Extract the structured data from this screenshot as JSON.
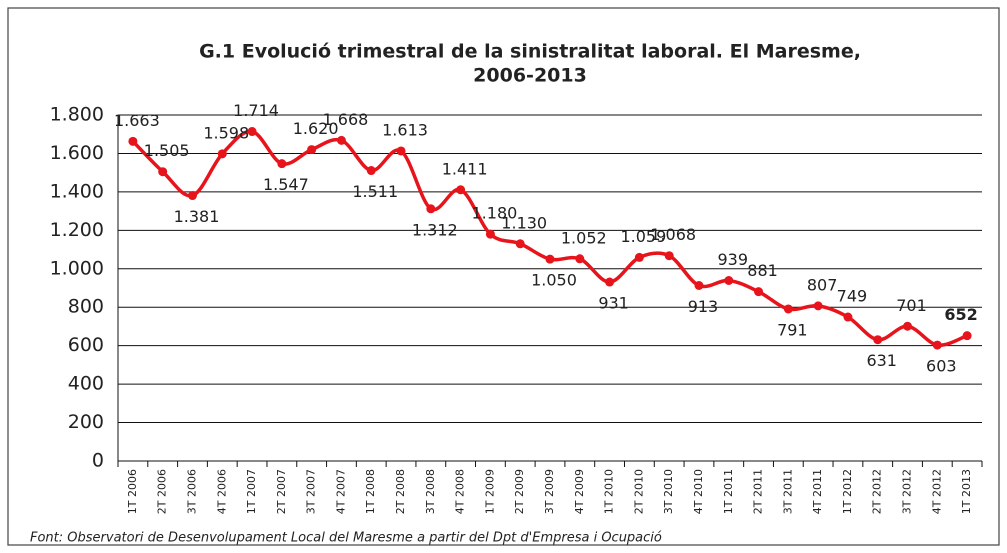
{
  "chart_data": {
    "type": "line",
    "title": [
      "G.1 Evolució trimestral de la sinistralitat laboral. El Maresme,",
      "2006-2013"
    ],
    "source": "Font: Observatori de Desenvolupament Local del Maresme a partir del Dpt d'Empresa i Ocupació",
    "categories": [
      "1T 2006",
      "2T 2006",
      "3T 2006",
      "4T 2006",
      "1T 2007",
      "2T 2007",
      "3T 2007",
      "4T 2007",
      "1T 2008",
      "2T 2008",
      "3T 2008",
      "4T 2008",
      "1T 2009",
      "2T 2009",
      "3T 2009",
      "4T 2009",
      "1T 2010",
      "2T 2010",
      "3T 2010",
      "4T 2010",
      "1T 2011",
      "2T 2011",
      "3T 2011",
      "4T 2011",
      "1T 2012",
      "2T 2012",
      "3T 2012",
      "4T 2012",
      "1T 2013"
    ],
    "series": [
      {
        "color": "#e8141c",
        "values": [
          1663,
          1505,
          1381,
          1598,
          1714,
          1547,
          1620,
          1668,
          1511,
          1613,
          1312,
          1411,
          1180,
          1130,
          1050,
          1052,
          931,
          1059,
          1068,
          913,
          939,
          881,
          791,
          807,
          749,
          631,
          701,
          603,
          652
        ],
        "value_labels": [
          "1.663",
          "1.505",
          "1.381",
          "1.598",
          "1.714",
          "1.547",
          "1.620",
          "1.668",
          "1.511",
          "1.613",
          "1.312",
          "1.411",
          "1.180",
          "1.130",
          "1.050",
          "1.052",
          "931",
          "1.059",
          "1.068",
          "913",
          "939",
          "881",
          "791",
          "807",
          "749",
          "631",
          "701",
          "603",
          "652"
        ]
      }
    ],
    "ylim": [
      0,
      1800
    ],
    "yticks": [
      0,
      200,
      400,
      600,
      800,
      {
        "value": 1000,
        "label": "1.000"
      },
      {
        "value": 1200,
        "label": "1.200"
      },
      {
        "value": 1400,
        "label": "1.400"
      },
      {
        "value": 1600,
        "label": "1.600"
      },
      {
        "value": 1800,
        "label": "1.800"
      }
    ],
    "grid": true
  }
}
